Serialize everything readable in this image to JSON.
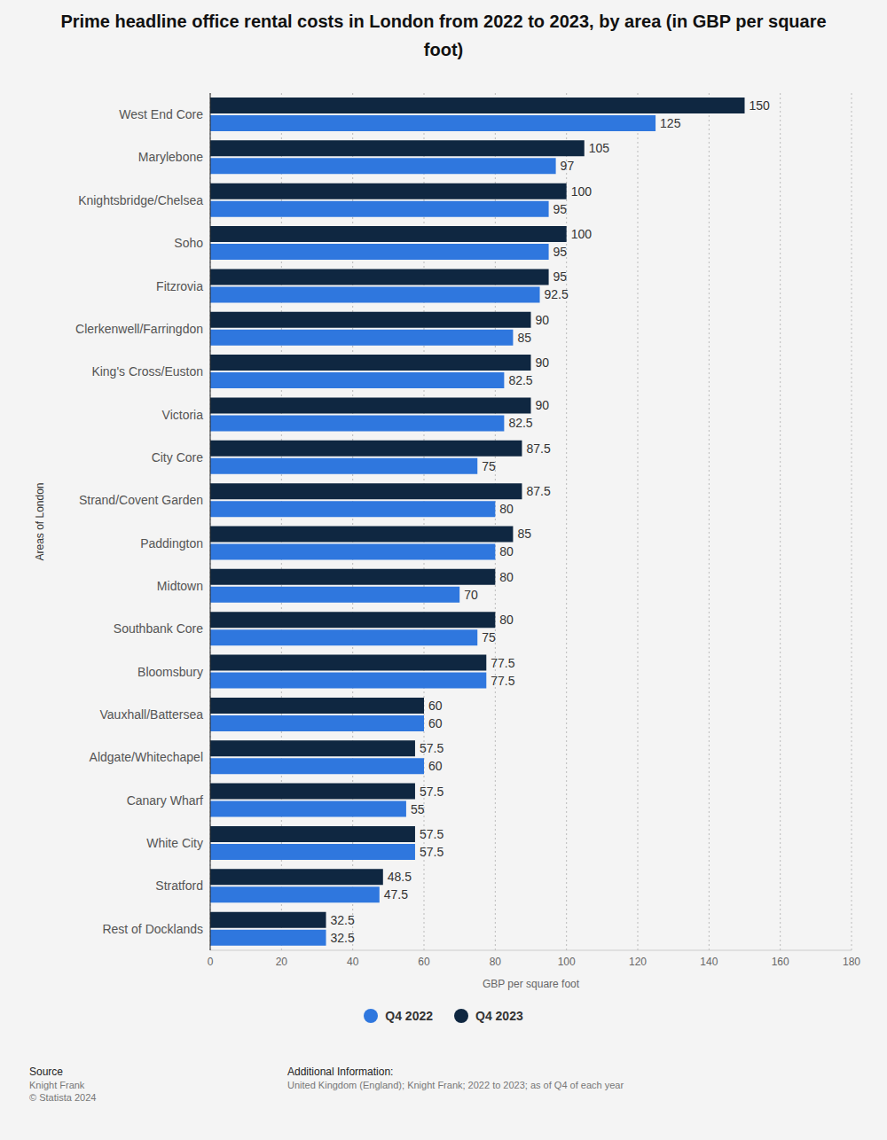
{
  "chart_data": {
    "type": "bar",
    "title": "Prime headline office rental costs in London from 2022 to 2023, by area (in GBP per square foot)",
    "x_label": "GBP per square foot",
    "y_label": "Areas of London",
    "orientation": "horizontal",
    "categories": [
      "West End Core",
      "Marylebone",
      "Knightsbridge/Chelsea",
      "Soho",
      "Fitzrovia",
      "Clerkenwell/Farringdon",
      "King's Cross/Euston",
      "Victoria",
      "City Core",
      "Strand/Covent Garden",
      "Paddington",
      "Midtown",
      "Southbank Core",
      "Bloomsbury",
      "Vauxhall/Battersea",
      "Aldgate/Whitechapel",
      "Canary Wharf",
      "White City",
      "Stratford",
      "Rest of Docklands"
    ],
    "series": [
      {
        "name": "Q4 2022",
        "color": "#2f77de",
        "values": [
          125,
          97,
          95,
          95,
          92.5,
          85,
          82.5,
          82.5,
          75,
          80,
          80,
          70,
          75,
          77.5,
          60,
          60,
          55,
          57.5,
          47.5,
          32.5
        ]
      },
      {
        "name": "Q4 2023",
        "color": "#0f2741",
        "values": [
          150,
          105,
          100,
          100,
          95,
          90,
          90,
          90,
          87.5,
          87.5,
          85,
          80,
          80,
          77.5,
          60,
          57.5,
          57.5,
          57.5,
          48.5,
          32.5
        ]
      }
    ],
    "xlim": [
      0,
      180
    ],
    "xticks": [
      0,
      20,
      40,
      60,
      80,
      100,
      120,
      140,
      160,
      180
    ],
    "grid": true,
    "legend": "bottom",
    "data_labels": true,
    "footer": {
      "source_heading": "Source",
      "source": "Knight Frank",
      "copyright": "© Statista 2024",
      "info_heading": "Additional Information:",
      "info": "United Kingdom (England); Knight Frank; 2022 to 2023; as of Q4 of each year"
    }
  }
}
